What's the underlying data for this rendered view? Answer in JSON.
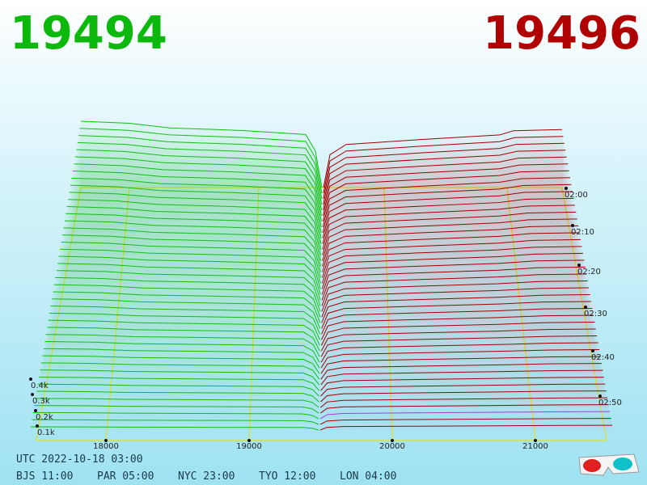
{
  "header": {
    "bid": "19494",
    "ask": "19496"
  },
  "axes": {
    "price_ticks": [
      "18000",
      "19000",
      "20000",
      "21000"
    ],
    "depth_ticks": [
      "0.4k",
      "0.3k",
      "0.2k",
      "0.1k"
    ],
    "time_ticks": [
      "02:00",
      "02:10",
      "02:20",
      "02:30",
      "02:40",
      "02:50"
    ]
  },
  "footer": {
    "utc": "UTC 2022-10-18 03:00",
    "zones": [
      "BJS 11:00",
      "PAR 05:00",
      "NYC 23:00",
      "TYO 12:00",
      "LON 04:00"
    ]
  }
}
